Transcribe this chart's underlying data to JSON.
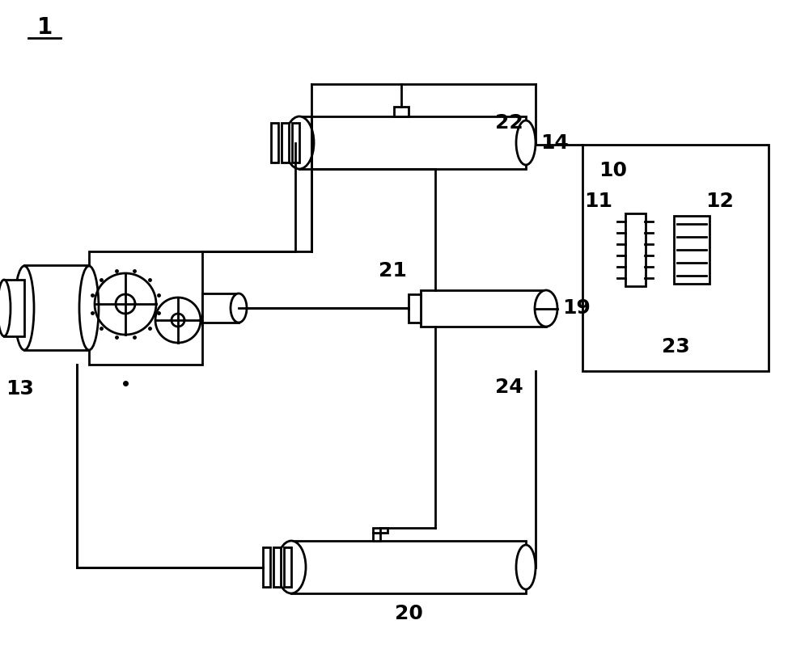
{
  "bg_color": "#ffffff",
  "line_color": "#000000",
  "line_width": 2.0,
  "label_1": "1",
  "label_10": "10",
  "label_11": "11",
  "label_12": "12",
  "label_13": "13",
  "label_14": "14",
  "label_19": "19",
  "label_20": "20",
  "label_21": "21",
  "label_22": "22",
  "label_23": "23",
  "label_24": "24",
  "font_size": 18,
  "title_font_size": 20
}
